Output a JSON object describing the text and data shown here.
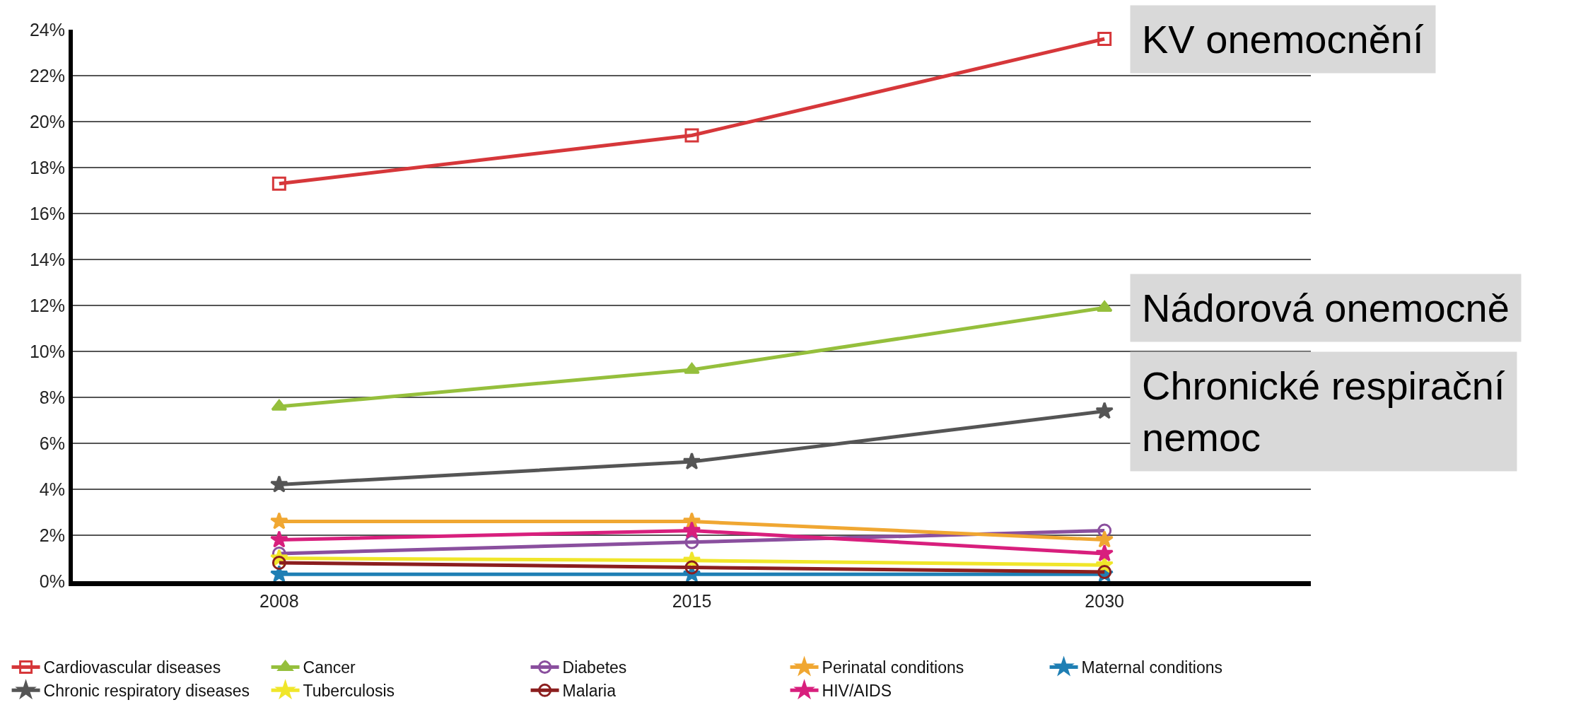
{
  "chart_data": {
    "type": "line",
    "categories": [
      "2008",
      "2015",
      "2030"
    ],
    "ylim": [
      0,
      24
    ],
    "yticks": [
      {
        "value": 0,
        "label": "0%"
      },
      {
        "value": 2,
        "label": "2%"
      },
      {
        "value": 4,
        "label": "4%"
      },
      {
        "value": 6,
        "label": "6%"
      },
      {
        "value": 8,
        "label": "8%"
      },
      {
        "value": 10,
        "label": "10%"
      },
      {
        "value": 12,
        "label": "12%"
      },
      {
        "value": 14,
        "label": "14%"
      },
      {
        "value": 16,
        "label": "16%"
      },
      {
        "value": 18,
        "label": "18%"
      },
      {
        "value": 20,
        "label": "20%"
      },
      {
        "value": 22,
        "label": "22%"
      },
      {
        "value": 24,
        "label": "24%"
      }
    ],
    "grid": "y",
    "legend": "bottom",
    "line_style": "solid",
    "series": [
      {
        "name": "Cardiovascular diseases",
        "color": "#d6373a",
        "marker": "square",
        "values": [
          17.3,
          19.4,
          23.6
        ]
      },
      {
        "name": "Cancer",
        "color": "#95bf3c",
        "marker": "triangle",
        "values": [
          7.6,
          9.2,
          11.9
        ]
      },
      {
        "name": "Diabetes",
        "color": "#8a4f9e",
        "marker": "circle",
        "values": [
          1.2,
          1.7,
          2.2
        ]
      },
      {
        "name": "Perinatal conditions",
        "color": "#f0a732",
        "marker": "star",
        "values": [
          2.6,
          2.6,
          1.8
        ]
      },
      {
        "name": "Maternal conditions",
        "color": "#1f7fb4",
        "marker": "star",
        "values": [
          0.3,
          0.3,
          0.3
        ]
      },
      {
        "name": "Chronic respiratory diseases",
        "color": "#555555",
        "marker": "star",
        "values": [
          4.2,
          5.2,
          7.4
        ]
      },
      {
        "name": "Tuberculosis",
        "color": "#f0e62a",
        "marker": "star",
        "values": [
          1.0,
          0.9,
          0.7
        ]
      },
      {
        "name": "Malaria",
        "color": "#8b1e1e",
        "marker": "circle",
        "values": [
          0.8,
          0.6,
          0.4
        ]
      },
      {
        "name": "HIV/AIDS",
        "color": "#d81f7d",
        "marker": "star",
        "values": [
          1.8,
          2.2,
          1.2
        ]
      }
    ],
    "annotations": [
      {
        "text": "KV onemocnění",
        "x": "2030",
        "y": 23.6
      },
      {
        "text": "Nádorová onemocně",
        "x": "2030",
        "y": 11.9
      },
      {
        "text": "Chronické respirační\nnemoc",
        "x": "2030",
        "y": 7.4
      }
    ]
  }
}
